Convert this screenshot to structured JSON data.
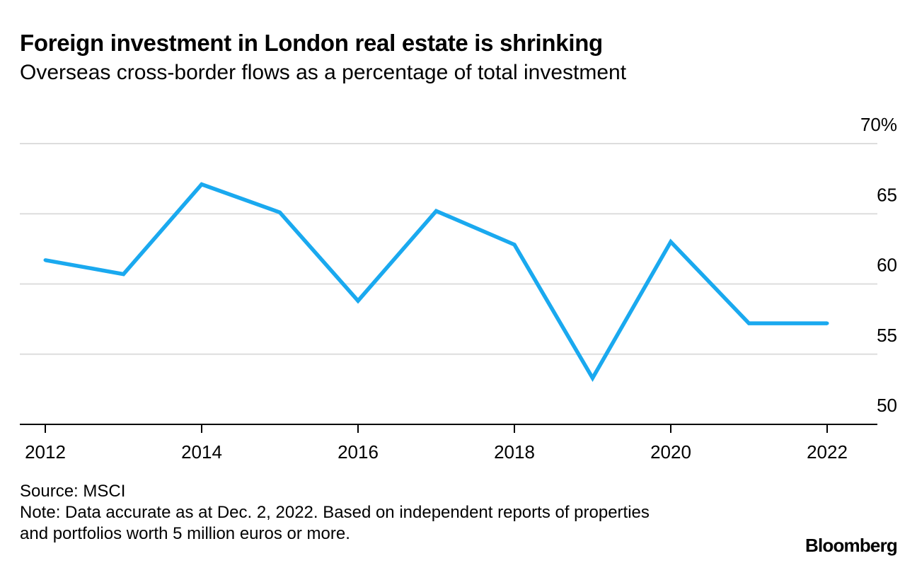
{
  "header": {
    "title": "Foreign investment in London real estate is shrinking",
    "subtitle": "Overseas cross-border flows as a percentage of total investment"
  },
  "footer": {
    "source": "Source: MSCI",
    "note_line1": "Note: Data accurate as at Dec. 2, 2022. Based on independent reports of properties",
    "note_line2": "and portfolios worth 5 million euros or more.",
    "brand": "Bloomberg"
  },
  "chart_data": {
    "type": "line",
    "title": "Foreign investment in London real estate is shrinking",
    "subtitle": "Overseas cross-border flows as a percentage of total investment",
    "x": [
      2012,
      2013,
      2014,
      2015,
      2016,
      2017,
      2018,
      2019,
      2020,
      2021,
      2022
    ],
    "series": [
      {
        "name": "",
        "color": "#1aa9ef",
        "values": [
          61.7,
          60.7,
          67.1,
          65.1,
          58.8,
          65.2,
          62.8,
          53.3,
          63.0,
          57.2,
          57.2
        ]
      }
    ],
    "xlim": [
      2012,
      2022
    ],
    "ylim": [
      50,
      70
    ],
    "x_ticks": [
      2012,
      2014,
      2016,
      2018,
      2020,
      2022
    ],
    "x_tick_labels": [
      "2012",
      "2014",
      "2016",
      "2018",
      "2020",
      "2022"
    ],
    "y_ticks": [
      70,
      65,
      60,
      55,
      50
    ],
    "y_tick_labels": [
      "70%",
      "65",
      "60",
      "55",
      "50"
    ],
    "y_axis_side": "right",
    "grid": "horizontal",
    "gridline_color": "#dddddd",
    "axis_color": "#000000",
    "xlabel": "",
    "ylabel": ""
  }
}
